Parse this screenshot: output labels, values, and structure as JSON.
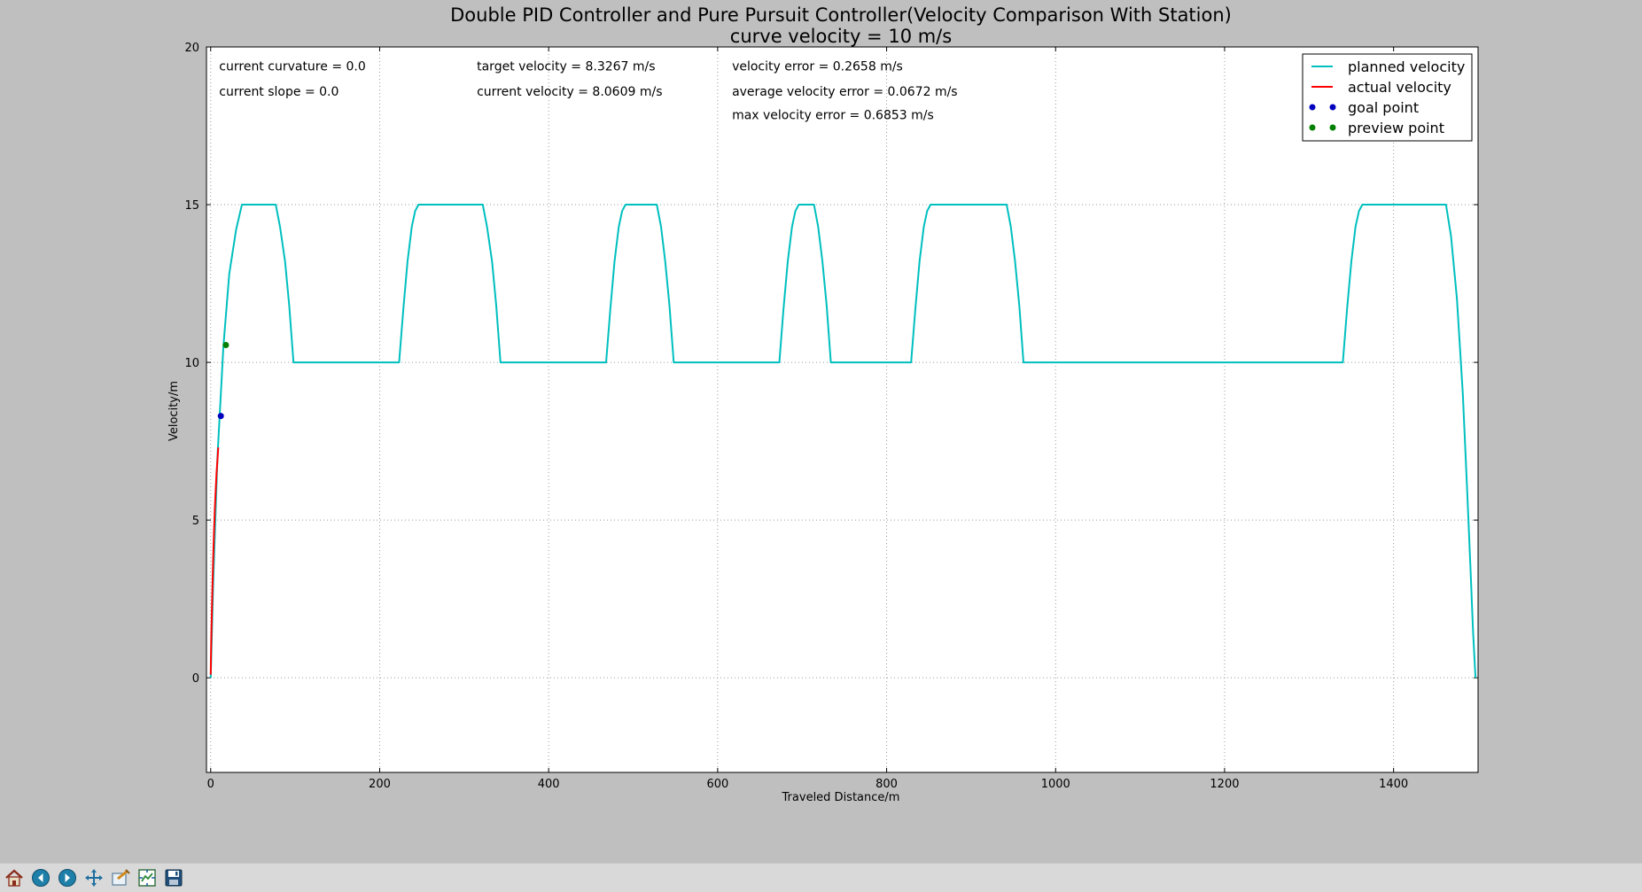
{
  "window": {
    "toolbar": [
      {
        "name": "home-icon",
        "label": "Home"
      },
      {
        "name": "back-icon",
        "label": "Back"
      },
      {
        "name": "forward-icon",
        "label": "Forward"
      },
      {
        "name": "pan-icon",
        "label": "Pan"
      },
      {
        "name": "zoom-icon",
        "label": "Zoom"
      },
      {
        "name": "subplots-icon",
        "label": "Subplots"
      },
      {
        "name": "save-icon",
        "label": "Save"
      }
    ]
  },
  "chart_data": {
    "type": "line",
    "title": "Double PID Controller and Pure Pursuit Controller(Velocity Comparison With Station)",
    "subtitle": "curve velocity = 10 m/s",
    "xlabel": "Traveled Distance/m",
    "ylabel": "Velocity/m",
    "xlim": [
      -5,
      1500
    ],
    "ylim": [
      -3,
      20
    ],
    "xticks": [
      0,
      200,
      400,
      600,
      800,
      1000,
      1200,
      1400
    ],
    "yticks": [
      0,
      5,
      10,
      15,
      20
    ],
    "grid": true,
    "legend_position": "top-right",
    "annotations": [
      {
        "text": "current curvature = 0.0",
        "x": 10,
        "y": 19.4
      },
      {
        "text": "current slope = 0.0",
        "x": 10,
        "y": 18.6
      },
      {
        "text": "target velocity = 8.3267 m/s",
        "x": 315,
        "y": 19.4
      },
      {
        "text": "current velocity = 8.0609 m/s",
        "x": 315,
        "y": 18.6
      },
      {
        "text": "velocity error = 0.2658 m/s",
        "x": 617,
        "y": 19.4
      },
      {
        "text": "average velocity error = 0.0672 m/s",
        "x": 617,
        "y": 18.6
      },
      {
        "text": "max velocity error = 0.6853 m/s",
        "x": 617,
        "y": 17.85
      }
    ],
    "series": [
      {
        "name": "planned velocity",
        "kind": "line",
        "color": "#00bfbf",
        "x": [
          0,
          3,
          8,
          15,
          22,
          30,
          37,
          77,
          82,
          88,
          93,
          98,
          223,
          228,
          233,
          238,
          242,
          246,
          322,
          327,
          333,
          338,
          343,
          468,
          473,
          478,
          483,
          487,
          491,
          528,
          533,
          538,
          543,
          548,
          673,
          678,
          683,
          688,
          692,
          696,
          714,
          719,
          724,
          729,
          734,
          829,
          834,
          839,
          844,
          848,
          852,
          942,
          947,
          952,
          957,
          962,
          1340,
          1345,
          1350,
          1355,
          1359,
          1363,
          1462,
          1468,
          1475,
          1482,
          1487,
          1491,
          1494,
          1497
        ],
        "y": [
          0,
          3,
          7,
          10.5,
          12.8,
          14.2,
          15,
          15,
          14.3,
          13.2,
          11.8,
          10,
          10,
          11.7,
          13.2,
          14.3,
          14.8,
          15,
          15,
          14.3,
          13.2,
          11.8,
          10,
          10,
          11.7,
          13.2,
          14.3,
          14.8,
          15,
          15,
          14.3,
          13.2,
          11.8,
          10,
          10,
          11.7,
          13.2,
          14.3,
          14.8,
          15,
          15,
          14.3,
          13.2,
          11.8,
          10,
          10,
          11.7,
          13.2,
          14.3,
          14.8,
          15,
          15,
          14.3,
          13.2,
          11.8,
          10,
          10,
          11.7,
          13.2,
          14.3,
          14.8,
          15,
          15,
          14,
          12,
          9,
          6,
          3.5,
          1.5,
          0
        ]
      },
      {
        "name": "actual velocity",
        "kind": "line",
        "color": "#ff0000",
        "x": [
          0,
          0.5,
          1,
          1.5,
          2,
          3,
          4,
          5,
          6,
          7,
          8,
          9
        ],
        "y": [
          0.1,
          0.9,
          1.6,
          2.2,
          2.8,
          3.8,
          4.7,
          5.4,
          6.0,
          6.5,
          6.9,
          7.3
        ]
      },
      {
        "name": "goal point",
        "kind": "point",
        "color": "#0000bf",
        "x": [
          12
        ],
        "y": [
          8.3
        ]
      },
      {
        "name": "preview point",
        "kind": "point",
        "color": "#007f00",
        "x": [
          18
        ],
        "y": [
          10.55
        ]
      }
    ]
  }
}
